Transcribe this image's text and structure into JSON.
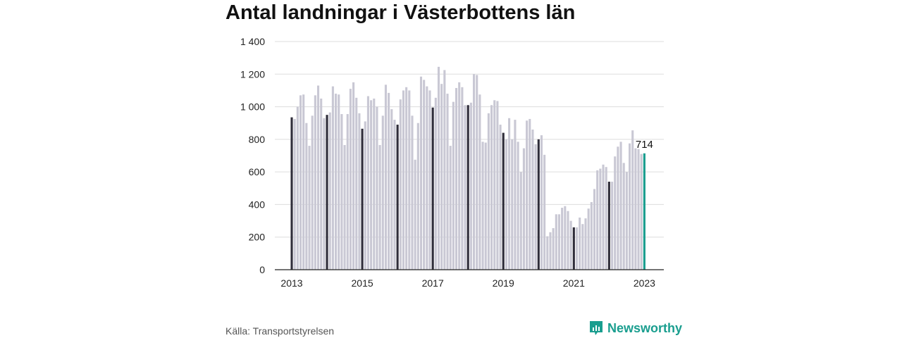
{
  "title": "Antal landningar i Västerbottens län",
  "source": "Källa: Transportstyrelsen",
  "brand": {
    "name": "Newsworthy"
  },
  "colors": {
    "bar": "#c9c8d4",
    "january": "#2f2d3a",
    "latest": "#1a9e8f",
    "grid": "#dddddd",
    "brand": "#1a9e8f"
  },
  "chart_data": {
    "type": "bar",
    "title": "Antal landningar i Västerbottens län",
    "xlabel": "",
    "ylabel": "",
    "ylim": [
      0,
      1400
    ],
    "yticks": [
      0,
      200,
      400,
      600,
      800,
      1000,
      1200,
      1400
    ],
    "ytick_labels": [
      "0",
      "200",
      "400",
      "600",
      "800",
      "1 000",
      "1 200",
      "1 400"
    ],
    "xtick_labels": [
      "2013",
      "2015",
      "2017",
      "2019",
      "2021",
      "2023"
    ],
    "start": "2013-01",
    "end": "2023-01",
    "grid": true,
    "annotation": {
      "date": "2023-01",
      "label": "714"
    },
    "values": [
      935,
      925,
      1000,
      1070,
      1075,
      900,
      760,
      945,
      1070,
      1130,
      1050,
      930,
      950,
      965,
      1125,
      1080,
      1075,
      955,
      765,
      955,
      1110,
      1150,
      1055,
      960,
      865,
      910,
      1065,
      1040,
      1050,
      1000,
      765,
      945,
      1135,
      1085,
      985,
      920,
      890,
      1045,
      1100,
      1120,
      1100,
      945,
      675,
      900,
      1185,
      1165,
      1125,
      1100,
      995,
      1055,
      1245,
      1140,
      1225,
      1080,
      760,
      1030,
      1115,
      1150,
      1120,
      1010,
      1010,
      1025,
      1200,
      1195,
      1075,
      785,
      780,
      960,
      1010,
      1040,
      1035,
      890,
      840,
      800,
      930,
      800,
      920,
      785,
      600,
      745,
      915,
      925,
      860,
      770,
      800,
      825,
      705,
      205,
      230,
      255,
      340,
      340,
      380,
      390,
      360,
      300,
      260,
      260,
      320,
      280,
      315,
      375,
      415,
      495,
      610,
      620,
      645,
      630,
      540,
      540,
      695,
      755,
      785,
      655,
      600,
      775,
      855,
      745,
      740,
      710,
      714
    ]
  }
}
